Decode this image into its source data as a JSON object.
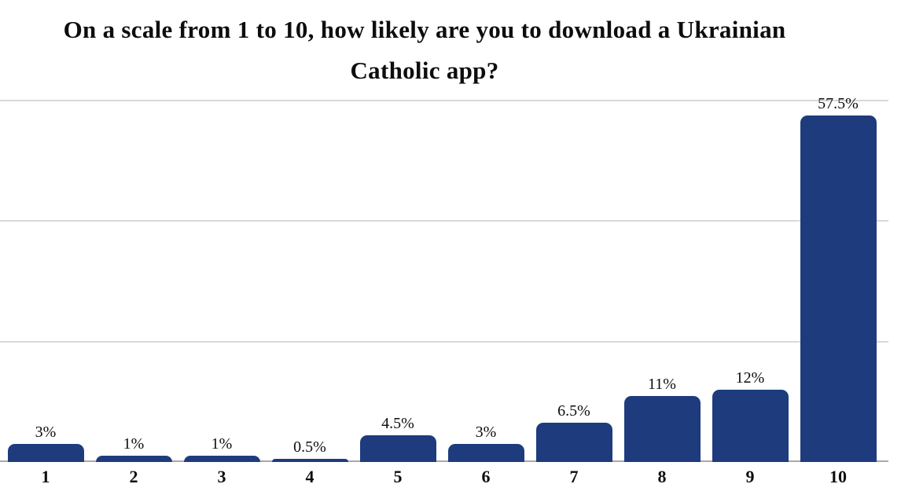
{
  "title": {
    "text": "On a scale from 1 to 10, how likely are you to download a Ukrainian Catholic app?",
    "line1": "On a scale from 1 to 10, how likely are you to download a Ukrainian",
    "line2": "Catholic app?"
  },
  "chart_data": {
    "type": "bar",
    "title": "On a scale from 1 to 10, how likely are you to download a Ukrainian Catholic app?",
    "categories": [
      "1",
      "2",
      "3",
      "4",
      "5",
      "6",
      "7",
      "8",
      "9",
      "10"
    ],
    "values": [
      3,
      1,
      1,
      0.5,
      4.5,
      3,
      6.5,
      11,
      12,
      57.5
    ],
    "value_labels": [
      "3%",
      "1%",
      "1%",
      "0.5%",
      "4.5%",
      "3%",
      "6.5%",
      "11%",
      "12%",
      "57.5%"
    ],
    "xlabel": "",
    "ylabel": "",
    "ylim": [
      0,
      60
    ],
    "gridline_values": [
      20,
      40,
      60
    ],
    "grid": true,
    "legend": "none",
    "bar_color": "#1e3c7d",
    "gridline_color": "#d9d9d9",
    "axis_line_color": "#a9a9a9",
    "text_color": "#0d0d0d"
  }
}
